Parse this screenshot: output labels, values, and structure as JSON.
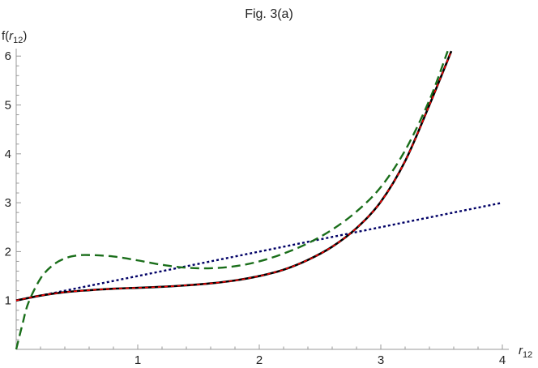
{
  "chart_data": {
    "type": "line",
    "title": "Fig. 3(a)",
    "xlabel": "r12",
    "ylabel": "f(r12)",
    "xlim": [
      0,
      4
    ],
    "ylim": [
      0,
      6.1
    ],
    "xticks": [
      1,
      2,
      3,
      4
    ],
    "yticks": [
      1,
      2,
      3,
      4,
      5,
      6
    ],
    "grid": false,
    "legend": null,
    "series": [
      {
        "name": "black-solid",
        "color": "#000000",
        "style": "solid",
        "x": [
          0,
          0.2,
          0.4,
          0.6,
          0.8,
          1.0,
          1.2,
          1.4,
          1.6,
          1.8,
          2.0,
          2.2,
          2.4,
          2.6,
          2.8,
          3.0,
          3.2,
          3.4,
          3.58
        ],
        "y": [
          1.0,
          1.1,
          1.17,
          1.21,
          1.24,
          1.26,
          1.28,
          1.31,
          1.35,
          1.41,
          1.5,
          1.63,
          1.83,
          2.1,
          2.48,
          3.02,
          3.85,
          5.0,
          6.1
        ]
      },
      {
        "name": "red-dashed",
        "color": "#ff0000",
        "style": "dashed",
        "x": [
          0,
          0.2,
          0.4,
          0.6,
          0.8,
          1.0,
          1.2,
          1.4,
          1.6,
          1.8,
          2.0,
          2.2,
          2.4,
          2.6,
          2.8,
          3.0,
          3.2,
          3.4,
          3.58
        ],
        "y": [
          1.0,
          1.1,
          1.17,
          1.21,
          1.24,
          1.26,
          1.28,
          1.31,
          1.35,
          1.41,
          1.5,
          1.63,
          1.83,
          2.1,
          2.48,
          3.02,
          3.85,
          5.0,
          6.1
        ]
      },
      {
        "name": "green-dashed",
        "color": "#1a6e1a",
        "style": "long-dashed",
        "x": [
          0,
          0.05,
          0.1,
          0.2,
          0.3,
          0.4,
          0.5,
          0.6,
          0.8,
          1.0,
          1.2,
          1.4,
          1.6,
          1.8,
          2.0,
          2.2,
          2.4,
          2.6,
          2.8,
          3.0,
          3.2,
          3.4,
          3.55
        ],
        "y": [
          0,
          0.5,
          0.95,
          1.45,
          1.72,
          1.86,
          1.92,
          1.93,
          1.9,
          1.82,
          1.73,
          1.67,
          1.66,
          1.7,
          1.8,
          1.96,
          2.17,
          2.45,
          2.82,
          3.32,
          4.07,
          5.1,
          6.1
        ]
      },
      {
        "name": "blue-dotted",
        "color": "#000066",
        "style": "dotted",
        "x": [
          0,
          4
        ],
        "y": [
          1,
          3
        ]
      }
    ]
  },
  "labels": {
    "title": "Fig. 3(a)",
    "ylabel_prefix": "f(",
    "ylabel_var": "r",
    "ylabel_sub": "12",
    "ylabel_suffix": ")",
    "xlabel_var": "r",
    "xlabel_sub": "12"
  },
  "ticks": {
    "x": [
      "1",
      "2",
      "3",
      "4"
    ],
    "y": [
      "1",
      "2",
      "3",
      "4",
      "5",
      "6"
    ]
  }
}
